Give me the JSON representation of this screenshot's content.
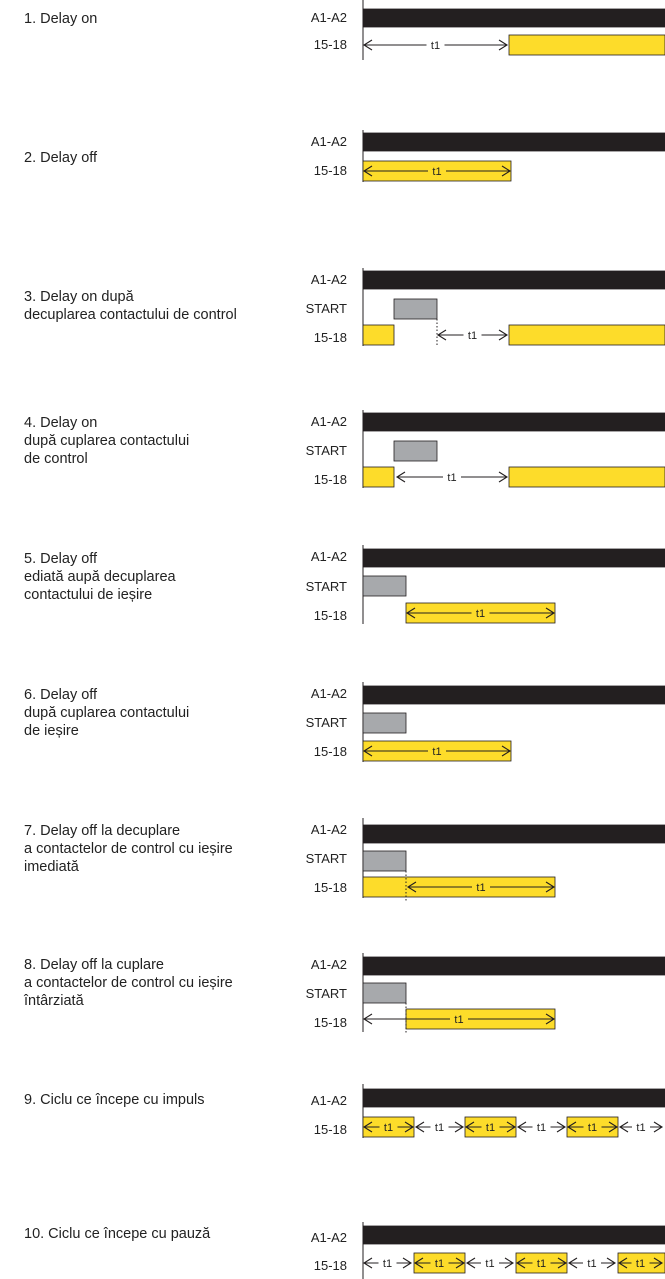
{
  "colors": {
    "supply": "#231f20",
    "output": "#fddc2a",
    "control": "#a7a9ac",
    "stroke": "#231f20"
  },
  "modes": [
    {
      "title": "1. Delay on",
      "signals": [
        "A1-A2",
        "15-18"
      ],
      "t": "t1"
    },
    {
      "title": "2. Delay off",
      "signals": [
        "A1-A2",
        "15-18"
      ],
      "t": "t1"
    },
    {
      "title": "3. Delay on după\ndecuplarea contactului de control",
      "signals": [
        "A1-A2",
        "START",
        "15-18"
      ],
      "t": "t1"
    },
    {
      "title": "4. Delay on\ndupă cuplarea contactului\nde control",
      "signals": [
        "A1-A2",
        "START",
        "15-18"
      ],
      "t": "t1"
    },
    {
      "title": "5. Delay off\nediată aupă decuplarea\ncontactului de ieșire",
      "signals": [
        "A1-A2",
        "START",
        "15-18"
      ],
      "t": "t1"
    },
    {
      "title": "6. Delay off\ndupă cuplarea contactului\nde ieșire",
      "signals": [
        "A1-A2",
        "START",
        "15-18"
      ],
      "t": "t1"
    },
    {
      "title": "7. Delay off la decuplare\na contactelor de control cu ieșire\nimediată",
      "signals": [
        "A1-A2",
        "START",
        "15-18"
      ],
      "t": "t1"
    },
    {
      "title": "8. Delay off la cuplare\na contactelor de control cu ieșire\nîntârziată",
      "signals": [
        "A1-A2",
        "START",
        "15-18"
      ],
      "t": "t1"
    },
    {
      "title": "9. Ciclu ce începe cu impuls",
      "signals": [
        "A1-A2",
        "15-18"
      ],
      "t": "t1"
    },
    {
      "title": "10. Ciclu ce începe cu pauză",
      "signals": [
        "A1-A2",
        "15-18"
      ],
      "t": "t1"
    }
  ]
}
